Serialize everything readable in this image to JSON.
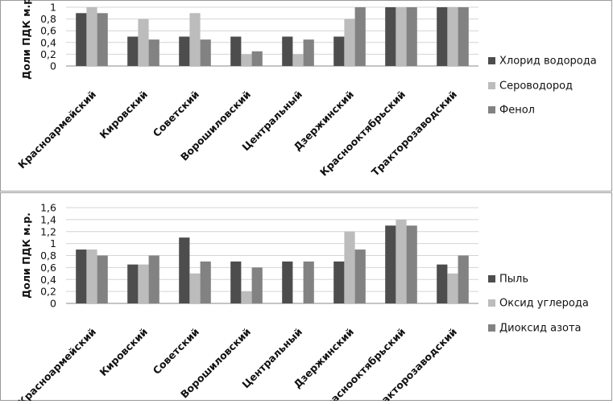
{
  "chart_data": [
    {
      "type": "bar",
      "ylabel": "Доли ПДК м.р.",
      "ylim": [
        0,
        1
      ],
      "yticks": [
        0,
        0.2,
        0.4,
        0.6,
        0.8,
        1
      ],
      "ytick_labels": [
        "0",
        "0,2",
        "0,4",
        "0,6",
        "0,8",
        "1"
      ],
      "categories": [
        "Красноармейский",
        "Кировский",
        "Советский",
        "Ворошиловский",
        "Центральный",
        "Дзержинский",
        "Краснооктябрьский",
        "Тракторозаводский"
      ],
      "series": [
        {
          "name": "Хлорид водорода",
          "color": "#4d4d4d",
          "values": [
            0.9,
            0.5,
            0.5,
            0.5,
            0.5,
            0.5,
            1.0,
            1.0
          ]
        },
        {
          "name": "Сероводород",
          "color": "#bcbcbc",
          "values": [
            1.1,
            0.8,
            0.9,
            0.2,
            0.2,
            0.8,
            1.0,
            1.0
          ]
        },
        {
          "name": "Фенол",
          "color": "#828282",
          "values": [
            0.9,
            0.45,
            0.45,
            0.25,
            0.45,
            1.0,
            1.0,
            1.0
          ]
        }
      ],
      "legend": "right"
    },
    {
      "type": "bar",
      "ylabel": "Доли ПДК м.р.",
      "ylim": [
        0,
        1.6
      ],
      "yticks": [
        0,
        0.2,
        0.4,
        0.6,
        0.8,
        1,
        1.2,
        1.4,
        1.6
      ],
      "ytick_labels": [
        "0",
        "0,2",
        "0,4",
        "0,6",
        "0,8",
        "1",
        "1,2",
        "1,4",
        "1,6"
      ],
      "categories": [
        "Красноармейский",
        "Кировский",
        "Советский",
        "Ворошиловский",
        "Центральный",
        "Дзержинский",
        "Краснооктябрьский",
        "Тракторозаводский"
      ],
      "series": [
        {
          "name": "Пыль",
          "color": "#4d4d4d",
          "values": [
            0.9,
            0.65,
            1.1,
            0.7,
            0.7,
            0.7,
            1.3,
            0.65
          ]
        },
        {
          "name": "Оксид углерода",
          "color": "#bcbcbc",
          "values": [
            0.9,
            0.65,
            0.5,
            0.2,
            0.0,
            1.2,
            1.4,
            0.5
          ]
        },
        {
          "name": "Диоксид азота",
          "color": "#828282",
          "values": [
            0.8,
            0.8,
            0.7,
            0.6,
            0.7,
            0.9,
            1.3,
            0.8
          ]
        }
      ],
      "legend": "right"
    }
  ]
}
